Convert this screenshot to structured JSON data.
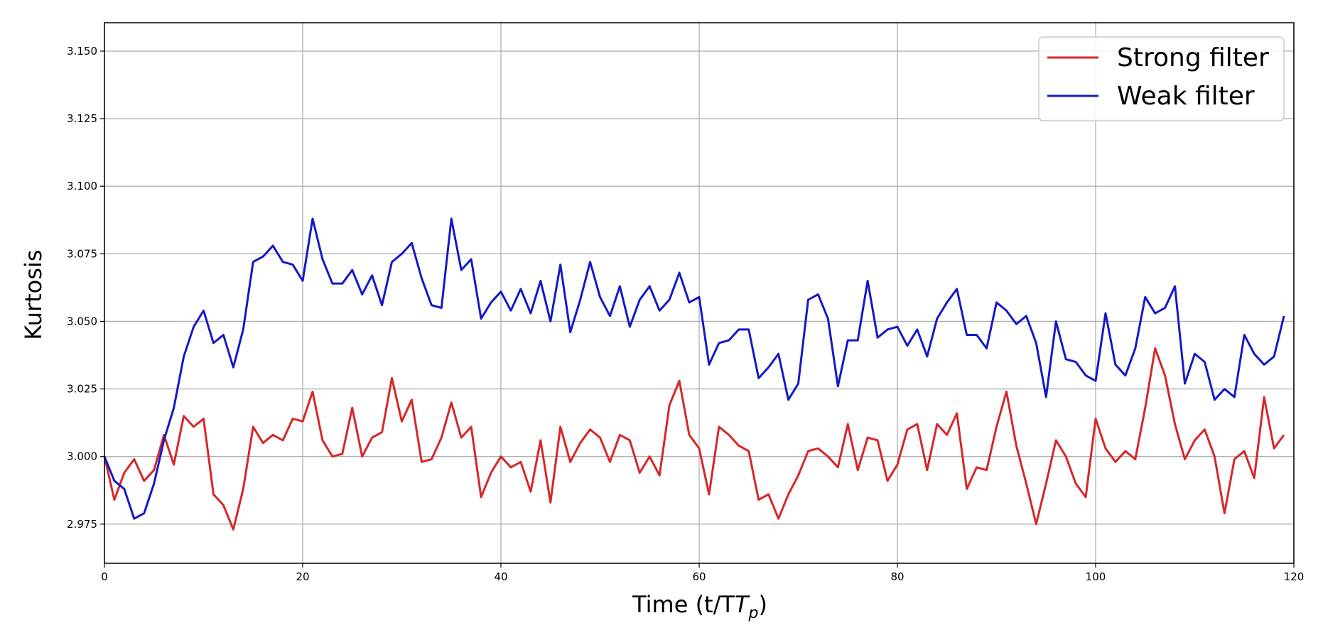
{
  "chart_data": {
    "type": "line",
    "xlabel": "Time (t/T",
    "xlabel_sub": "p",
    "xlabel_close": ")",
    "ylabel": "Kurtosis",
    "xlim": [
      0,
      120
    ],
    "ylim": [
      2.9605,
      3.1605
    ],
    "grid": true,
    "legend_position": "top-right",
    "x_ticks": [
      0,
      20,
      40,
      60,
      80,
      100,
      120
    ],
    "x_tick_labels": [
      "0",
      "20",
      "40",
      "60",
      "80",
      "100",
      "120"
    ],
    "y_ticks": [
      2.975,
      3.0,
      3.025,
      3.05,
      3.075,
      3.1,
      3.125,
      3.15
    ],
    "y_tick_labels": [
      "2.975",
      "3.000",
      "3.025",
      "3.050",
      "3.075",
      "3.100",
      "3.125",
      "3.150"
    ],
    "x": [
      0,
      1,
      2,
      3,
      4,
      5,
      6,
      7,
      8,
      9,
      10,
      11,
      12,
      13,
      14,
      15,
      16,
      17,
      18,
      19,
      20,
      21,
      22,
      23,
      24,
      25,
      26,
      27,
      28,
      29,
      30,
      31,
      32,
      33,
      34,
      35,
      36,
      37,
      38,
      39,
      40,
      41,
      42,
      43,
      44,
      45,
      46,
      47,
      48,
      49,
      50,
      51,
      52,
      53,
      54,
      55,
      56,
      57,
      58,
      59,
      60,
      61,
      62,
      63,
      64,
      65,
      66,
      67,
      68,
      69,
      70,
      71,
      72,
      73,
      74,
      75,
      76,
      77,
      78,
      79,
      80,
      81,
      82,
      83,
      84,
      85,
      86,
      87,
      88,
      89,
      90,
      91,
      92,
      93,
      94,
      95,
      96,
      97,
      98,
      99,
      100,
      101,
      102,
      103,
      104,
      105,
      106,
      107,
      108,
      109,
      110,
      111,
      112,
      113,
      114,
      115,
      116,
      117,
      118,
      119
    ],
    "series": [
      {
        "name": "Strong filter",
        "color": "#d62728",
        "values": [
          3.0,
          2.984,
          2.994,
          2.999,
          2.991,
          2.995,
          3.008,
          2.997,
          3.015,
          3.011,
          3.014,
          2.986,
          2.982,
          2.973,
          2.988,
          3.011,
          3.005,
          3.008,
          3.006,
          3.014,
          3.013,
          3.024,
          3.006,
          3.0,
          3.001,
          3.018,
          3.0,
          3.007,
          3.009,
          3.029,
          3.013,
          3.021,
          2.998,
          2.999,
          3.007,
          3.02,
          3.007,
          3.011,
          2.985,
          2.994,
          3.0,
          2.996,
          2.998,
          2.987,
          3.006,
          2.983,
          3.011,
          2.998,
          3.005,
          3.01,
          3.007,
          2.998,
          3.008,
          3.006,
          2.994,
          3.0,
          2.993,
          3.019,
          3.028,
          3.008,
          3.003,
          2.986,
          3.011,
          3.008,
          3.004,
          3.002,
          2.984,
          2.986,
          2.977,
          2.986,
          2.993,
          3.002,
          3.003,
          3.0,
          2.996,
          3.012,
          2.995,
          3.007,
          3.006,
          2.991,
          2.997,
          3.01,
          3.012,
          2.995,
          3.012,
          3.008,
          3.016,
          2.988,
          2.996,
          2.995,
          3.011,
          3.024,
          3.004,
          2.99,
          2.975,
          2.99,
          3.006,
          3.0,
          2.99,
          2.985,
          3.014,
          3.003,
          2.998,
          3.002,
          2.999,
          3.018,
          3.04,
          3.03,
          3.012,
          2.999,
          3.006,
          3.01,
          3.0,
          2.979,
          2.999,
          3.002,
          2.992,
          3.022,
          3.003,
          3.008
        ]
      },
      {
        "name": "Weak filter",
        "color": "#1419c8",
        "values": [
          3.0,
          2.991,
          2.988,
          2.977,
          2.979,
          2.99,
          3.006,
          3.018,
          3.037,
          3.048,
          3.054,
          3.042,
          3.045,
          3.033,
          3.047,
          3.072,
          3.074,
          3.078,
          3.072,
          3.071,
          3.065,
          3.088,
          3.073,
          3.064,
          3.064,
          3.069,
          3.06,
          3.067,
          3.056,
          3.072,
          3.075,
          3.079,
          3.066,
          3.056,
          3.055,
          3.088,
          3.069,
          3.073,
          3.051,
          3.057,
          3.061,
          3.054,
          3.062,
          3.053,
          3.065,
          3.05,
          3.071,
          3.046,
          3.058,
          3.072,
          3.059,
          3.052,
          3.063,
          3.048,
          3.058,
          3.063,
          3.054,
          3.058,
          3.068,
          3.057,
          3.059,
          3.034,
          3.042,
          3.043,
          3.047,
          3.047,
          3.029,
          3.033,
          3.038,
          3.021,
          3.027,
          3.058,
          3.06,
          3.051,
          3.026,
          3.043,
          3.043,
          3.065,
          3.044,
          3.047,
          3.048,
          3.041,
          3.047,
          3.037,
          3.051,
          3.057,
          3.062,
          3.045,
          3.045,
          3.04,
          3.057,
          3.054,
          3.049,
          3.052,
          3.042,
          3.022,
          3.05,
          3.036,
          3.035,
          3.03,
          3.028,
          3.053,
          3.034,
          3.03,
          3.04,
          3.059,
          3.053,
          3.055,
          3.063,
          3.027,
          3.038,
          3.035,
          3.021,
          3.025,
          3.022,
          3.045,
          3.038,
          3.034,
          3.037,
          3.052
        ]
      }
    ]
  }
}
